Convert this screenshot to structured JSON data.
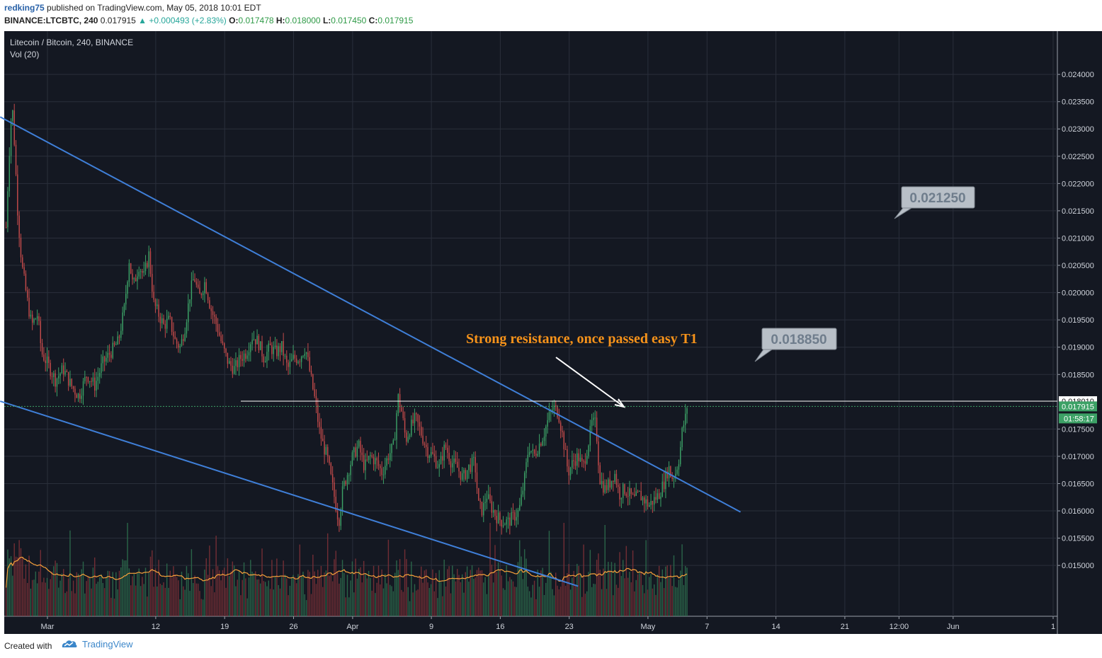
{
  "header": {
    "author": "redking75",
    "published_text": " published on TradingView.com, May 05, 2018 10:01 EDT",
    "symbol": "BINANCE:LTCBTC, 240",
    "last": " 0.017915 ",
    "change": "▲ +0.000493 (+2.83%)",
    "o_label": " O:",
    "o": "0.017478",
    "h_label": " H:",
    "h": "0.018000",
    "l_label": " L:",
    "l": "0.017450",
    "c_label": " C:",
    "c": "0.017915"
  },
  "footer": {
    "created_with": "Created with",
    "brand": "TradingView"
  },
  "chart_data": {
    "type": "candlestick",
    "title": "Litecoin / Bitcoin, 240, BINANCE",
    "indicator": "Vol (20)",
    "ylim": [
      0.0146,
      0.0243
    ],
    "y_ticks": [
      "0.024000",
      "0.023500",
      "0.023000",
      "0.022500",
      "0.022000",
      "0.021500",
      "0.021000",
      "0.020500",
      "0.020000",
      "0.019500",
      "0.019000",
      "0.018500",
      "0.017500",
      "0.017000",
      "0.016500",
      "0.016000",
      "0.015500",
      "0.015000"
    ],
    "y_tick_values": [
      0.024,
      0.0235,
      0.023,
      0.0225,
      0.022,
      0.0215,
      0.021,
      0.0205,
      0.02,
      0.0195,
      0.019,
      0.0185,
      0.0175,
      0.017,
      0.0165,
      0.016,
      0.0155,
      0.015
    ],
    "x_ticks": [
      {
        "label": "Mar",
        "day": 0
      },
      {
        "label": "12",
        "day": 11
      },
      {
        "label": "19",
        "day": 18
      },
      {
        "label": "26",
        "day": 25
      },
      {
        "label": "Apr",
        "day": 31
      },
      {
        "label": "9",
        "day": 39
      },
      {
        "label": "16",
        "day": 46
      },
      {
        "label": "23",
        "day": 53
      },
      {
        "label": "May",
        "day": 61
      },
      {
        "label": "7",
        "day": 67
      },
      {
        "label": "14",
        "day": 74
      },
      {
        "label": "21",
        "day": 81
      },
      {
        "label": "12:00",
        "day": 86.5
      },
      {
        "label": "Jun",
        "day": 92
      },
      {
        "label": "1",
        "day": 102
      }
    ],
    "price_path": [
      [
        -4.2,
        0.0212
      ],
      [
        -3.9,
        0.0225
      ],
      [
        -3.6,
        0.0235
      ],
      [
        -3.4,
        0.0229
      ],
      [
        -3.0,
        0.0214
      ],
      [
        -2.6,
        0.0205
      ],
      [
        -2.0,
        0.0198
      ],
      [
        -1.6,
        0.0194
      ],
      [
        -1.0,
        0.0196
      ],
      [
        -0.6,
        0.0189
      ],
      [
        0.0,
        0.0187
      ],
      [
        0.8,
        0.0184
      ],
      [
        1.6,
        0.0186
      ],
      [
        2.4,
        0.0183
      ],
      [
        3.2,
        0.0181
      ],
      [
        4.0,
        0.0185
      ],
      [
        4.8,
        0.0183
      ],
      [
        5.6,
        0.0187
      ],
      [
        6.4,
        0.0189
      ],
      [
        7.2,
        0.0191
      ],
      [
        7.8,
        0.0197
      ],
      [
        8.3,
        0.0206
      ],
      [
        8.7,
        0.0201
      ],
      [
        9.3,
        0.0205
      ],
      [
        9.8,
        0.0203
      ],
      [
        10.3,
        0.0207
      ],
      [
        10.8,
        0.0198
      ],
      [
        11.3,
        0.0196
      ],
      [
        11.8,
        0.0194
      ],
      [
        12.4,
        0.0195
      ],
      [
        13.0,
        0.0191
      ],
      [
        13.5,
        0.019
      ],
      [
        14.0,
        0.0194
      ],
      [
        14.5,
        0.02
      ],
      [
        14.9,
        0.0203
      ],
      [
        15.4,
        0.0199
      ],
      [
        16.0,
        0.0202
      ],
      [
        16.6,
        0.0197
      ],
      [
        17.2,
        0.0194
      ],
      [
        17.8,
        0.019
      ],
      [
        18.4,
        0.0187
      ],
      [
        19.0,
        0.0186
      ],
      [
        19.6,
        0.0188
      ],
      [
        20.2,
        0.0189
      ],
      [
        20.8,
        0.0192
      ],
      [
        21.4,
        0.0191
      ],
      [
        22.0,
        0.0188
      ],
      [
        22.6,
        0.019
      ],
      [
        23.2,
        0.0189
      ],
      [
        23.8,
        0.019
      ],
      [
        24.4,
        0.0186
      ],
      [
        25.0,
        0.0188
      ],
      [
        25.6,
        0.0188
      ],
      [
        26.2,
        0.019
      ],
      [
        26.8,
        0.0184
      ],
      [
        27.2,
        0.018
      ],
      [
        27.6,
        0.0175
      ],
      [
        28.0,
        0.0172
      ],
      [
        28.4,
        0.017
      ],
      [
        28.8,
        0.0166
      ],
      [
        29.2,
        0.0162
      ],
      [
        29.6,
        0.0158
      ],
      [
        30.0,
        0.0164
      ],
      [
        30.5,
        0.0167
      ],
      [
        31.0,
        0.017
      ],
      [
        31.6,
        0.0172
      ],
      [
        32.2,
        0.0168
      ],
      [
        32.8,
        0.017
      ],
      [
        33.4,
        0.0169
      ],
      [
        34.0,
        0.0167
      ],
      [
        34.6,
        0.017
      ],
      [
        35.2,
        0.0172
      ],
      [
        35.6,
        0.0181
      ],
      [
        36.0,
        0.0178
      ],
      [
        36.4,
        0.0173
      ],
      [
        36.8,
        0.0175
      ],
      [
        37.4,
        0.0177
      ],
      [
        38.0,
        0.0174
      ],
      [
        38.6,
        0.0171
      ],
      [
        39.2,
        0.017
      ],
      [
        39.8,
        0.0168
      ],
      [
        40.4,
        0.0172
      ],
      [
        41.0,
        0.0169
      ],
      [
        41.6,
        0.0168
      ],
      [
        42.2,
        0.0166
      ],
      [
        42.8,
        0.0168
      ],
      [
        43.4,
        0.0169
      ],
      [
        43.8,
        0.0161
      ],
      [
        44.2,
        0.016
      ],
      [
        44.6,
        0.0163
      ],
      [
        45.0,
        0.0161
      ],
      [
        45.6,
        0.0159
      ],
      [
        46.2,
        0.0158
      ],
      [
        46.8,
        0.0158
      ],
      [
        47.4,
        0.0159
      ],
      [
        47.9,
        0.016
      ],
      [
        48.4,
        0.0165
      ],
      [
        48.9,
        0.0172
      ],
      [
        49.4,
        0.017
      ],
      [
        49.9,
        0.0172
      ],
      [
        50.4,
        0.0174
      ],
      [
        50.9,
        0.0177
      ],
      [
        51.4,
        0.0179
      ],
      [
        51.9,
        0.0178
      ],
      [
        52.4,
        0.0173
      ],
      [
        52.9,
        0.0167
      ],
      [
        53.4,
        0.0169
      ],
      [
        53.9,
        0.017
      ],
      [
        54.4,
        0.0168
      ],
      [
        54.9,
        0.0172
      ],
      [
        55.3,
        0.0176
      ],
      [
        55.7,
        0.0176
      ],
      [
        56.1,
        0.0166
      ],
      [
        56.6,
        0.0164
      ],
      [
        57.1,
        0.0165
      ],
      [
        57.6,
        0.0167
      ],
      [
        58.1,
        0.0163
      ],
      [
        58.6,
        0.0164
      ],
      [
        59.1,
        0.0163
      ],
      [
        59.6,
        0.0162
      ],
      [
        60.1,
        0.0163
      ],
      [
        60.6,
        0.0162
      ],
      [
        61.1,
        0.0161
      ],
      [
        61.6,
        0.0162
      ],
      [
        62.1,
        0.0163
      ],
      [
        62.6,
        0.0165
      ],
      [
        63.1,
        0.0168
      ],
      [
        63.4,
        0.0166
      ],
      [
        63.8,
        0.0167
      ],
      [
        64.2,
        0.017
      ],
      [
        64.5,
        0.0175
      ],
      [
        64.8,
        0.0177
      ],
      [
        65.0,
        0.017915
      ]
    ],
    "last_price": "0.017915",
    "resistance": "0.018010",
    "countdown": "01:58:17",
    "annotations": [
      {
        "text": "Strong resistance, once passed easy T1",
        "color": "#f7931a"
      },
      {
        "text": "0.018850",
        "type": "callout"
      },
      {
        "text": "0.021250",
        "type": "callout"
      }
    ],
    "trendlines": [
      {
        "name": "upper-trendline",
        "from": [
          -4.8,
          0.02322
        ],
        "to": [
          70.4,
          0.01598
        ],
        "color": "#3f7fd8"
      },
      {
        "name": "lower-trendline",
        "from": [
          -4.8,
          0.01801
        ],
        "to": [
          53.9,
          0.01462
        ],
        "color": "#3f7fd8"
      }
    ],
    "colors": {
      "background": "#141822",
      "up": "#3ca166",
      "down": "#c24a4a",
      "ma": "#f7a13b",
      "grid": "#2a2f3b",
      "axis_text": "#d0d4dc"
    }
  }
}
